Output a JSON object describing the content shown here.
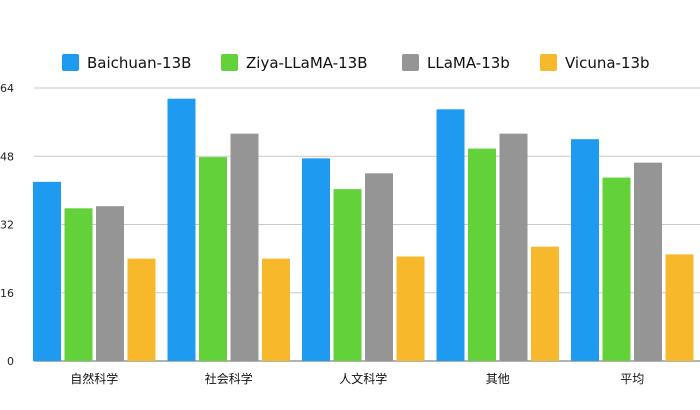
{
  "chart_data": {
    "type": "bar",
    "categories": [
      "自然科学",
      "社会科学",
      "人文科学",
      "其他",
      "平均"
    ],
    "series": [
      {
        "name": "Baichuan-13B",
        "color": "#1E9BF0",
        "values": [
          42.0,
          61.5,
          47.5,
          59.0,
          52.0
        ]
      },
      {
        "name": "Ziya-LLaMA-13B",
        "color": "#63D23A",
        "values": [
          35.8,
          47.8,
          40.3,
          49.8,
          43.0
        ]
      },
      {
        "name": "LLaMA-13b",
        "color": "#959595",
        "values": [
          36.3,
          53.3,
          44.0,
          53.3,
          46.5
        ]
      },
      {
        "name": "Vicuna-13b",
        "color": "#F8B82C",
        "values": [
          24.0,
          24.0,
          24.5,
          26.8,
          25.0
        ]
      }
    ],
    "yticks": [
      0,
      16,
      32,
      48,
      64
    ],
    "ylim": [
      0,
      64
    ],
    "grid": true,
    "legend_position": "top"
  }
}
